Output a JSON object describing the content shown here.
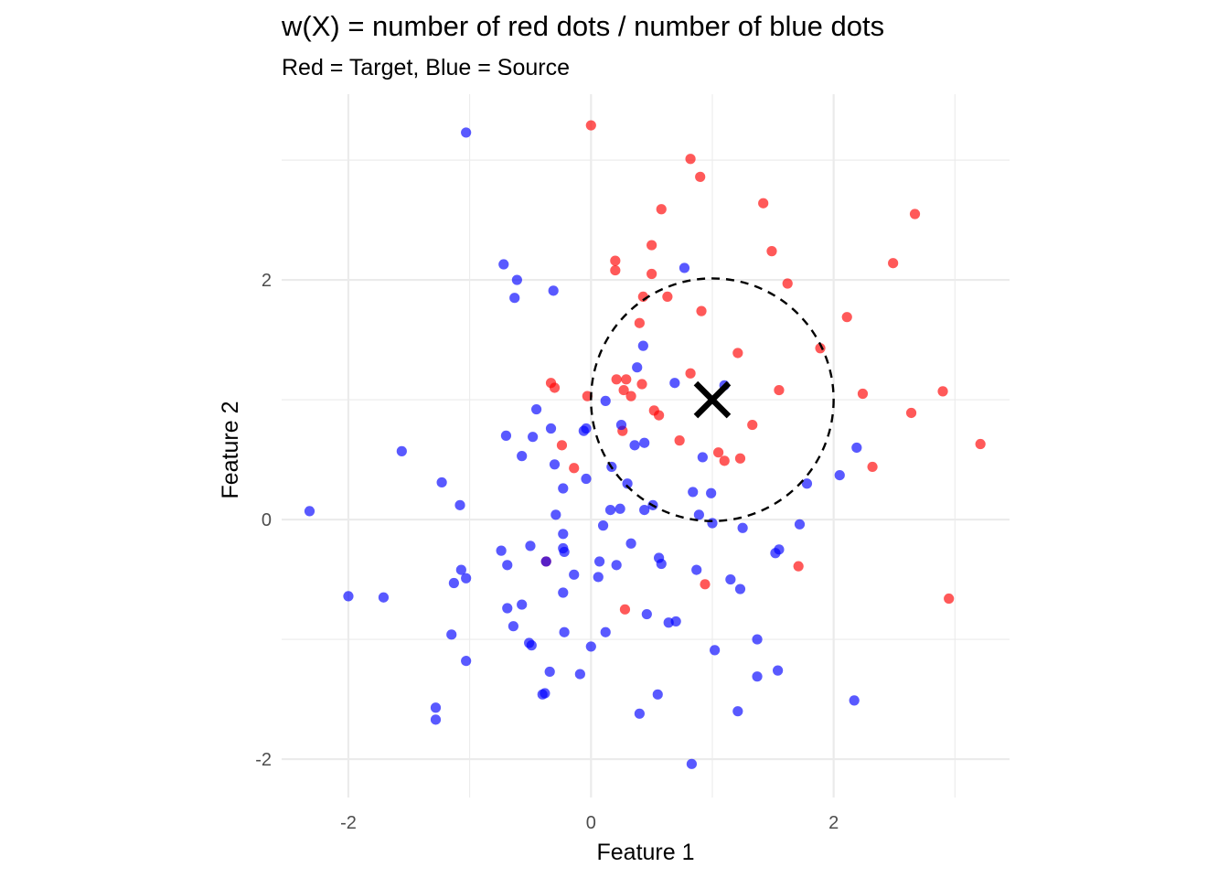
{
  "chart_data": {
    "type": "scatter",
    "title": "w(X) = number of red dots / number of blue dots",
    "subtitle": "Red = Target, Blue = Source",
    "xlabel": "Feature 1",
    "ylabel": "Feature 2",
    "xlim": [
      -2.55,
      3.45
    ],
    "ylim": [
      -2.32,
      3.55
    ],
    "x_ticks": [
      -2,
      0,
      2
    ],
    "y_ticks": [
      -2,
      0,
      2
    ],
    "x_tick_labels": [
      "-2",
      "0",
      "2"
    ],
    "y_tick_labels": [
      "-2",
      "0",
      "2"
    ],
    "grid": true,
    "colors": {
      "red": "#ff0000",
      "blue": "#0000ff",
      "marker": "#000000"
    },
    "marker_point": {
      "x": 1,
      "y": 1
    },
    "circle": {
      "center": [
        1,
        1
      ],
      "radius": 1
    },
    "series": [
      {
        "color": "#ff0000",
        "points": [
          [
            0,
            3.29
          ],
          [
            0.82,
            3.01
          ],
          [
            0.9,
            2.86
          ],
          [
            1.42,
            2.64
          ],
          [
            0.58,
            2.59
          ],
          [
            2.67,
            2.55
          ],
          [
            0.5,
            2.29
          ],
          [
            1.49,
            2.24
          ],
          [
            0.2,
            2.16
          ],
          [
            2.49,
            2.14
          ],
          [
            0.2,
            2.08
          ],
          [
            0.5,
            2.05
          ],
          [
            1.62,
            1.97
          ],
          [
            0.43,
            1.86
          ],
          [
            0.63,
            1.86
          ],
          [
            0.91,
            1.74
          ],
          [
            2.11,
            1.69
          ],
          [
            0.4,
            1.64
          ],
          [
            1.89,
            1.43
          ],
          [
            1.21,
            1.39
          ],
          [
            0.82,
            1.22
          ],
          [
            0.21,
            1.17
          ],
          [
            0.29,
            1.17
          ],
          [
            -0.33,
            1.14
          ],
          [
            0.42,
            1.13
          ],
          [
            -0.3,
            1.1
          ],
          [
            0.27,
            1.08
          ],
          [
            1.55,
            1.08
          ],
          [
            2.9,
            1.07
          ],
          [
            2.24,
            1.05
          ],
          [
            -0.03,
            1.03
          ],
          [
            0.33,
            1.03
          ],
          [
            0.52,
            0.91
          ],
          [
            0.56,
            0.87
          ],
          [
            2.64,
            0.89
          ],
          [
            1.33,
            0.79
          ],
          [
            0.26,
            0.74
          ],
          [
            0.73,
            0.66
          ],
          [
            3.21,
            0.63
          ],
          [
            -0.24,
            0.62
          ],
          [
            1.05,
            0.56
          ],
          [
            1.1,
            0.49
          ],
          [
            1.23,
            0.51
          ],
          [
            -0.14,
            0.43
          ],
          [
            2.32,
            0.44
          ],
          [
            1.71,
            -0.39
          ],
          [
            -0.37,
            -0.35
          ],
          [
            0.94,
            -0.54
          ],
          [
            0.28,
            -0.75
          ],
          [
            2.95,
            -0.66
          ]
        ]
      },
      {
        "color": "#0000ff",
        "points": [
          [
            -1.03,
            3.23
          ],
          [
            -0.72,
            2.13
          ],
          [
            0.77,
            2.1
          ],
          [
            -0.61,
            2
          ],
          [
            -0.31,
            1.91
          ],
          [
            -0.63,
            1.85
          ],
          [
            0.43,
            1.45
          ],
          [
            0.38,
            1.27
          ],
          [
            0.69,
            1.14
          ],
          [
            1.1,
            1.12
          ],
          [
            0.12,
            0.99
          ],
          [
            -0.45,
            0.92
          ],
          [
            -0.04,
            0.76
          ],
          [
            -0.33,
            0.76
          ],
          [
            -0.06,
            0.74
          ],
          [
            0.25,
            0.79
          ],
          [
            -0.7,
            0.7
          ],
          [
            -0.48,
            0.69
          ],
          [
            0.44,
            0.64
          ],
          [
            0.36,
            0.62
          ],
          [
            -1.56,
            0.57
          ],
          [
            -0.57,
            0.53
          ],
          [
            0.92,
            0.52
          ],
          [
            2.19,
            0.6
          ],
          [
            -0.3,
            0.46
          ],
          [
            0.17,
            0.44
          ],
          [
            -0.04,
            0.34
          ],
          [
            2.05,
            0.37
          ],
          [
            -1.23,
            0.31
          ],
          [
            0.3,
            0.3
          ],
          [
            1.78,
            0.3
          ],
          [
            -0.23,
            0.26
          ],
          [
            0.84,
            0.23
          ],
          [
            0.99,
            0.22
          ],
          [
            -1.08,
            0.12
          ],
          [
            0.51,
            0.12
          ],
          [
            0.24,
            0.09
          ],
          [
            0.16,
            0.08
          ],
          [
            0.44,
            0.08
          ],
          [
            -2.32,
            0.07
          ],
          [
            -0.29,
            0.04
          ],
          [
            0.89,
            0.04
          ],
          [
            1,
            -0.03
          ],
          [
            0.1,
            -0.05
          ],
          [
            1.25,
            -0.07
          ],
          [
            1.72,
            -0.04
          ],
          [
            -0.23,
            -0.12
          ],
          [
            -0.5,
            -0.22
          ],
          [
            0.33,
            -0.2
          ],
          [
            -0.23,
            -0.24
          ],
          [
            1.55,
            -0.25
          ],
          [
            -0.74,
            -0.26
          ],
          [
            -0.22,
            -0.27
          ],
          [
            1.52,
            -0.28
          ],
          [
            0.56,
            -0.32
          ],
          [
            0.07,
            -0.35
          ],
          [
            -0.37,
            -0.35
          ],
          [
            0.58,
            -0.37
          ],
          [
            -0.69,
            -0.38
          ],
          [
            0.21,
            -0.38
          ],
          [
            -1.07,
            -0.42
          ],
          [
            0.87,
            -0.42
          ],
          [
            -0.14,
            -0.46
          ],
          [
            0.06,
            -0.48
          ],
          [
            -1.03,
            -0.49
          ],
          [
            1.15,
            -0.5
          ],
          [
            -1.13,
            -0.53
          ],
          [
            1.23,
            -0.58
          ],
          [
            -2,
            -0.64
          ],
          [
            -1.71,
            -0.65
          ],
          [
            -0.23,
            -0.61
          ],
          [
            -0.57,
            -0.71
          ],
          [
            -0.69,
            -0.74
          ],
          [
            0.46,
            -0.79
          ],
          [
            0.7,
            -0.85
          ],
          [
            0.64,
            -0.86
          ],
          [
            -0.64,
            -0.89
          ],
          [
            -0.22,
            -0.94
          ],
          [
            0.12,
            -0.94
          ],
          [
            -1.15,
            -0.96
          ],
          [
            1.37,
            -1
          ],
          [
            -0.51,
            -1.03
          ],
          [
            -0.49,
            -1.05
          ],
          [
            0,
            -1.06
          ],
          [
            1.02,
            -1.09
          ],
          [
            -1.03,
            -1.18
          ],
          [
            -0.34,
            -1.27
          ],
          [
            -0.09,
            -1.29
          ],
          [
            1.37,
            -1.31
          ],
          [
            1.54,
            -1.26
          ],
          [
            -0.38,
            -1.45
          ],
          [
            -0.4,
            -1.46
          ],
          [
            0.55,
            -1.46
          ],
          [
            2.17,
            -1.51
          ],
          [
            -1.28,
            -1.57
          ],
          [
            1.21,
            -1.6
          ],
          [
            0.4,
            -1.62
          ],
          [
            -1.28,
            -1.67
          ],
          [
            0.83,
            -2.04
          ]
        ]
      }
    ]
  }
}
